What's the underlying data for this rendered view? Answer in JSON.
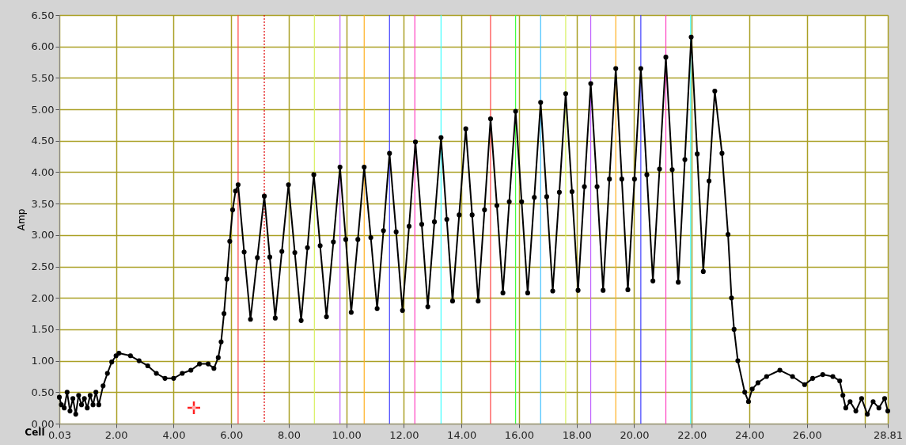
{
  "chart_data": {
    "type": "line",
    "xlabel": "Cell",
    "ylabel": "Amp",
    "grid": true,
    "marker": "circle",
    "line_style": "solid",
    "xlim": [
      0.03,
      28.81
    ],
    "ylim": [
      0,
      6.5
    ],
    "xticks": [
      0.03,
      {
        "value": 2,
        "label": "2.00"
      },
      {
        "value": 4,
        "label": "4.00"
      },
      {
        "value": 6,
        "label": "6.00"
      },
      {
        "value": 8,
        "label": "8.00"
      },
      {
        "value": 10,
        "label": "10.00"
      },
      {
        "value": 12,
        "label": "12.00"
      },
      {
        "value": 14,
        "label": "14.00"
      },
      {
        "value": 16,
        "label": "16.00"
      },
      {
        "value": 18,
        "label": "18.00"
      },
      {
        "value": 20,
        "label": "20.00"
      },
      {
        "value": 22,
        "label": "22.00"
      },
      {
        "value": 24,
        "label": "24.00"
      },
      {
        "value": 26,
        "label": "26.00"
      },
      {
        "value": 28,
        "label": null
      },
      28.81
    ],
    "yticks": [
      {
        "value": 0,
        "label": "0.00"
      },
      {
        "value": 0.5,
        "label": "0.50"
      },
      {
        "value": 1,
        "label": "1.00"
      },
      {
        "value": 1.5,
        "label": "1.50"
      },
      {
        "value": 2,
        "label": "2.00"
      },
      {
        "value": 2.5,
        "label": "2.50"
      },
      {
        "value": 3,
        "label": "3.00"
      },
      {
        "value": 3.5,
        "label": "3.50"
      },
      {
        "value": 4,
        "label": "4.00"
      },
      {
        "value": 4.5,
        "label": "4.50"
      },
      {
        "value": 5,
        "label": "5.00"
      },
      {
        "value": 5.5,
        "label": "5.50"
      },
      {
        "value": 6,
        "label": "6.00"
      },
      {
        "value": 6.5,
        "label": "6.50"
      }
    ],
    "ref_lines": [
      {
        "axis": "x",
        "value": 6.24,
        "color": "#ff4040"
      },
      {
        "axis": "x",
        "value": 7.15,
        "color": "#e00000",
        "line_style": "dotted"
      },
      {
        "axis": "x",
        "value": 8.89,
        "color": "#d8f060"
      },
      {
        "axis": "x",
        "value": 9.78,
        "color": "#c060ff"
      },
      {
        "axis": "x",
        "value": 10.62,
        "color": "#ffb020"
      },
      {
        "axis": "x",
        "value": 11.5,
        "color": "#4040ff"
      },
      {
        "axis": "x",
        "value": 12.38,
        "color": "#ff40c0"
      },
      {
        "axis": "x",
        "value": 13.29,
        "color": "#40ffff"
      },
      {
        "axis": "x",
        "value": 15.01,
        "color": "#ff4040"
      },
      {
        "axis": "x",
        "value": 15.88,
        "color": "#40ff40"
      },
      {
        "axis": "x",
        "value": 16.75,
        "color": "#40c0ff"
      },
      {
        "axis": "x",
        "value": 17.62,
        "color": "#d8f060"
      },
      {
        "axis": "x",
        "value": 18.49,
        "color": "#c060ff"
      },
      {
        "axis": "x",
        "value": 19.36,
        "color": "#ffb020"
      },
      {
        "axis": "x",
        "value": 20.23,
        "color": "#4040ff"
      },
      {
        "axis": "x",
        "value": 21.1,
        "color": "#ff40c0"
      },
      {
        "axis": "x",
        "value": 21.96,
        "color": "#40ffff"
      }
    ],
    "series": [
      {
        "color": "#000000",
        "x": [
          0.03,
          0.1,
          0.2,
          0.3,
          0.4,
          0.5,
          0.6,
          0.7,
          0.8,
          0.9,
          1.0,
          1.1,
          1.2,
          1.3,
          1.4,
          1.55,
          1.7,
          1.85,
          2.0,
          2.1,
          2.5,
          2.8,
          3.1,
          3.4,
          3.7,
          4.0,
          4.3,
          4.6,
          4.9,
          5.2,
          5.4,
          5.55,
          5.65,
          5.75,
          5.85,
          5.95,
          6.05,
          6.15,
          6.24,
          6.45,
          6.67,
          6.91,
          7.15,
          7.34,
          7.53,
          7.76,
          7.99,
          8.21,
          8.43,
          8.65,
          8.87,
          9.09,
          9.31,
          9.55,
          9.78,
          9.98,
          10.17,
          10.4,
          10.62,
          10.85,
          11.07,
          11.29,
          11.5,
          11.73,
          11.95,
          12.18,
          12.4,
          12.62,
          12.83,
          13.06,
          13.29,
          13.49,
          13.69,
          13.92,
          14.15,
          14.37,
          14.58,
          14.8,
          15.01,
          15.23,
          15.44,
          15.66,
          15.88,
          16.09,
          16.3,
          16.53,
          16.75,
          16.96,
          17.17,
          17.4,
          17.62,
          17.84,
          18.05,
          18.27,
          18.49,
          18.71,
          18.92,
          19.14,
          19.36,
          19.57,
          19.78,
          20.01,
          20.23,
          20.44,
          20.65,
          20.88,
          21.1,
          21.32,
          21.53,
          21.76,
          21.98,
          22.19,
          22.4,
          22.6,
          22.8,
          23.05,
          23.26,
          23.38,
          23.47,
          23.6,
          23.84,
          23.97,
          24.1,
          24.3,
          24.6,
          25.06,
          25.5,
          25.92,
          26.2,
          26.55,
          26.9,
          27.14,
          27.25,
          27.35,
          27.5,
          27.7,
          27.9,
          28.1,
          28.3,
          28.5,
          28.7,
          28.81
        ],
        "values": [
          0.42,
          0.3,
          0.25,
          0.5,
          0.2,
          0.4,
          0.15,
          0.45,
          0.3,
          0.4,
          0.25,
          0.45,
          0.3,
          0.5,
          0.3,
          0.6,
          0.8,
          0.98,
          1.08,
          1.12,
          1.08,
          1.0,
          0.92,
          0.8,
          0.72,
          0.72,
          0.8,
          0.85,
          0.95,
          0.95,
          0.88,
          1.05,
          1.3,
          1.75,
          2.3,
          2.9,
          3.4,
          3.7,
          3.8,
          2.73,
          1.66,
          2.64,
          3.62,
          2.65,
          1.68,
          2.74,
          3.8,
          2.72,
          1.64,
          2.8,
          3.96,
          2.83,
          1.7,
          2.89,
          4.08,
          2.93,
          1.77,
          2.93,
          4.08,
          2.96,
          1.83,
          3.07,
          4.3,
          3.05,
          1.8,
          3.14,
          4.48,
          3.17,
          1.86,
          3.21,
          4.55,
          3.25,
          1.95,
          3.32,
          4.69,
          3.32,
          1.95,
          3.4,
          4.85,
          3.47,
          2.08,
          3.53,
          4.97,
          3.53,
          2.08,
          3.6,
          5.11,
          3.61,
          2.11,
          3.68,
          5.25,
          3.69,
          2.12,
          3.77,
          5.41,
          3.77,
          2.12,
          3.89,
          5.65,
          3.89,
          2.13,
          3.89,
          5.65,
          3.96,
          2.27,
          4.05,
          5.83,
          4.04,
          2.25,
          4.2,
          6.15,
          4.29,
          2.42,
          3.86,
          5.29,
          4.3,
          3.01,
          2.0,
          1.5,
          1.0,
          0.5,
          0.35,
          0.55,
          0.65,
          0.75,
          0.85,
          0.75,
          0.62,
          0.72,
          0.78,
          0.75,
          0.68,
          0.45,
          0.25,
          0.35,
          0.2,
          0.4,
          0.15,
          0.35,
          0.25,
          0.4,
          0.2
        ]
      }
    ]
  }
}
